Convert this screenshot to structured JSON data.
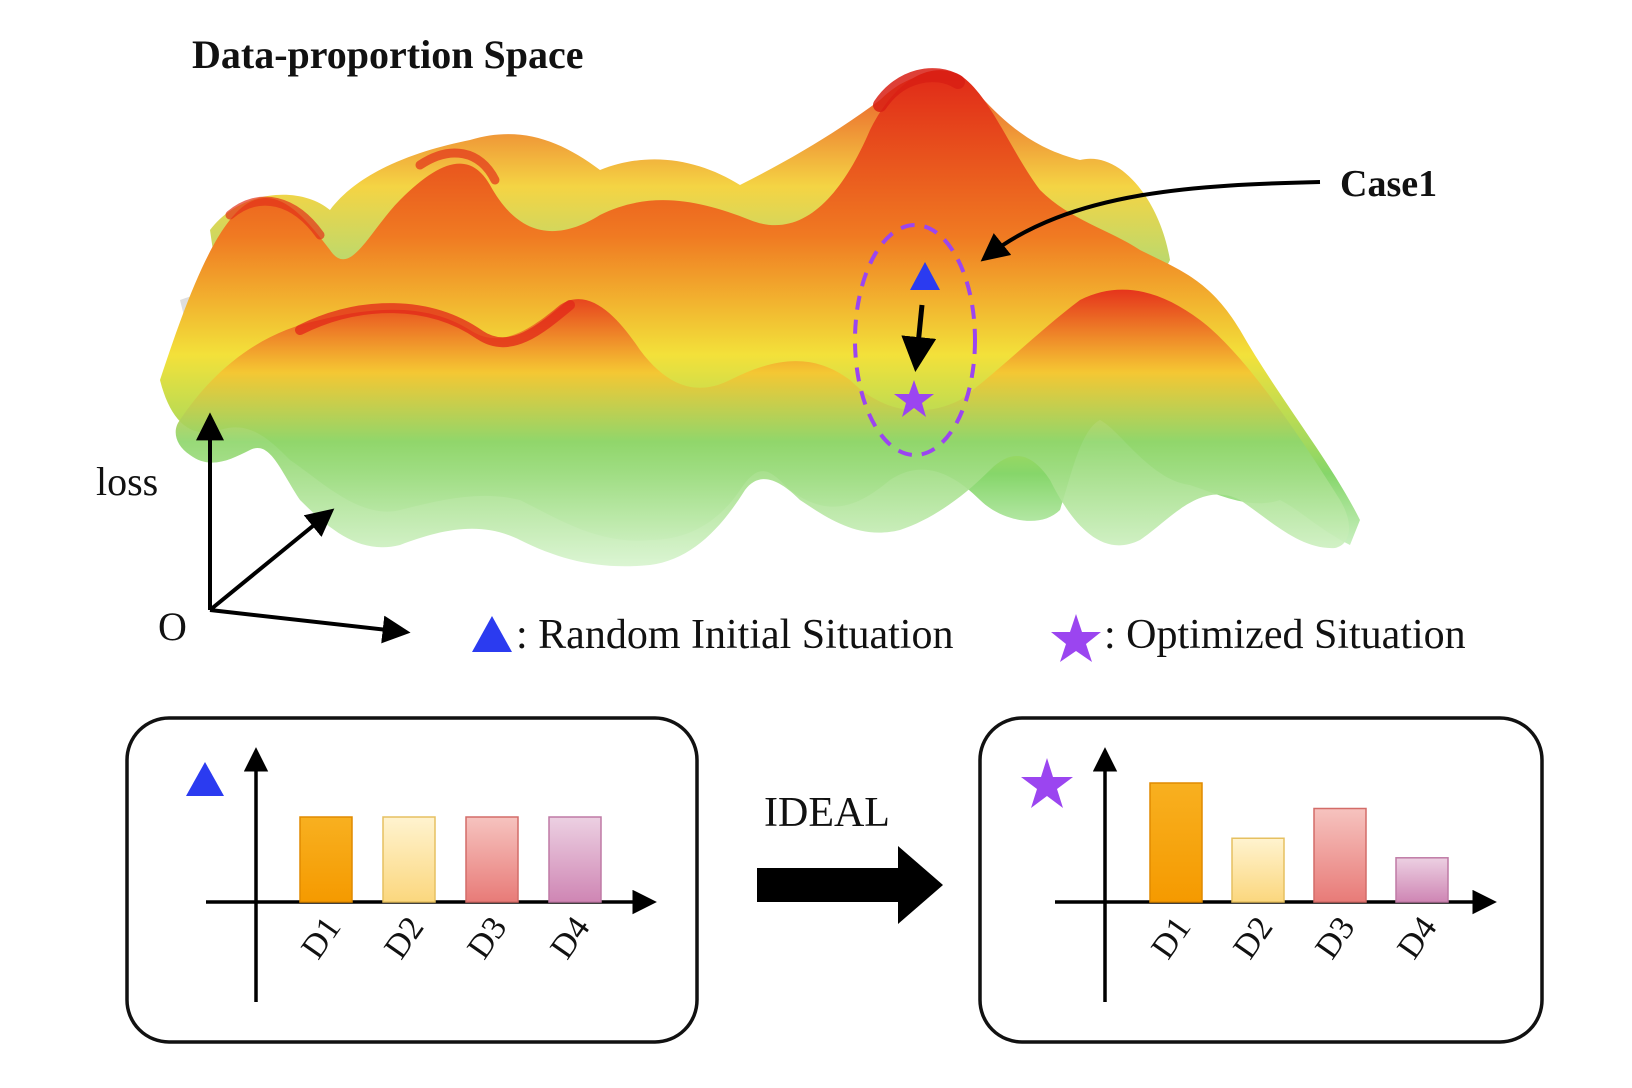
{
  "title": "Data-proportion Space",
  "case_label": "Case1",
  "axis": {
    "vertical_label": "loss",
    "origin_label": "O"
  },
  "legend": {
    "initial": {
      "icon": "triangle-icon",
      "color": "#2b3bf0",
      "label": ": Random Initial Situation"
    },
    "optimized": {
      "icon": "star-icon",
      "color": "#9b45f0",
      "label": ": Optimized Situation"
    }
  },
  "transition_label": "IDEAL",
  "colors": {
    "surface_low": "#7fd86a",
    "surface_mid": "#f5e53a",
    "surface_high": "#e62a1e",
    "case_ellipse": "#9b45f0",
    "bar_d1": "#f5a300",
    "bar_d2": "#fde7a3",
    "bar_d3": "#ee9a96",
    "bar_d4": "#dba7c6"
  },
  "chart_data": [
    {
      "type": "bar",
      "name_icon": "triangle-icon",
      "categories": [
        "D1",
        "D2",
        "D3",
        "D4"
      ],
      "values": [
        1.0,
        1.0,
        1.0,
        1.0
      ],
      "ylim": [
        0,
        1.6
      ]
    },
    {
      "type": "bar",
      "name_icon": "star-icon",
      "categories": [
        "D1",
        "D2",
        "D3",
        "D4"
      ],
      "values": [
        1.4,
        0.75,
        1.1,
        0.52
      ],
      "ylim": [
        0,
        1.6
      ]
    }
  ]
}
